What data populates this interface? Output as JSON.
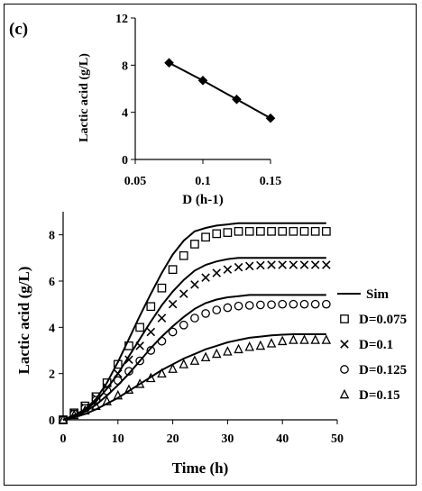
{
  "panel_label": "(c)",
  "chart_data": [
    {
      "type": "line",
      "xlabel": "D (h-1)",
      "ylabel": "Lactic acid (g/L)",
      "xlim": [
        0.05,
        0.15
      ],
      "ylim": [
        0,
        12
      ],
      "x_ticks": [
        "0.05",
        "0.1",
        "0.15"
      ],
      "y_ticks": [
        "0",
        "4",
        "8",
        "12"
      ],
      "grid": false,
      "series": [
        {
          "marker": "diamond",
          "x": [
            0.075,
            0.1,
            0.125,
            0.15
          ],
          "y": [
            8.2,
            6.7,
            5.1,
            3.5
          ]
        }
      ]
    },
    {
      "type": "scatter",
      "xlabel": "Time (h)",
      "ylabel": "Lactic acid (g/L)",
      "xlim": [
        0,
        50
      ],
      "ylim": [
        0,
        9
      ],
      "x_ticks": [
        "0",
        "10",
        "20",
        "30",
        "40",
        "50"
      ],
      "y_ticks": [
        "0",
        "2",
        "4",
        "6",
        "8"
      ],
      "grid": false,
      "legend": "right",
      "legend_entries": [
        "Sim",
        "D=0.075",
        "D=0.1",
        "D=0.125",
        "D=0.15"
      ],
      "series": [
        {
          "name": "D=0.075",
          "marker": "square",
          "x": [
            0,
            2,
            4,
            6,
            8,
            10,
            12,
            14,
            16,
            18,
            20,
            22,
            24,
            26,
            28,
            30,
            32,
            34,
            36,
            38,
            40,
            42,
            44,
            46,
            48
          ],
          "y": [
            0,
            0.3,
            0.6,
            1,
            1.6,
            2.4,
            3.2,
            4,
            4.9,
            5.7,
            6.5,
            7.1,
            7.6,
            7.9,
            8.05,
            8.1,
            8.15,
            8.15,
            8.15,
            8.15,
            8.15,
            8.15,
            8.15,
            8.15,
            8.15
          ]
        },
        {
          "name": "D=0.1",
          "marker": "cross",
          "x": [
            0,
            2,
            4,
            6,
            8,
            10,
            12,
            14,
            16,
            18,
            20,
            22,
            24,
            26,
            28,
            30,
            32,
            34,
            36,
            38,
            40,
            42,
            44,
            46,
            48
          ],
          "y": [
            0,
            0.3,
            0.55,
            0.95,
            1.4,
            2,
            2.6,
            3.2,
            3.8,
            4.4,
            5,
            5.45,
            5.85,
            6.15,
            6.35,
            6.5,
            6.6,
            6.65,
            6.68,
            6.7,
            6.7,
            6.7,
            6.7,
            6.7,
            6.7
          ]
        },
        {
          "name": "D=0.125",
          "marker": "circle",
          "x": [
            0,
            2,
            4,
            6,
            8,
            10,
            12,
            14,
            16,
            18,
            20,
            22,
            24,
            26,
            28,
            30,
            32,
            34,
            36,
            38,
            40,
            42,
            44,
            46,
            48
          ],
          "y": [
            0,
            0.25,
            0.5,
            0.85,
            1.25,
            1.7,
            2.1,
            2.55,
            3,
            3.4,
            3.8,
            4.1,
            4.4,
            4.6,
            4.75,
            4.85,
            4.92,
            4.95,
            4.97,
            4.98,
            5,
            5,
            5,
            5,
            5
          ]
        },
        {
          "name": "D=0.15",
          "marker": "triangle",
          "x": [
            0,
            2,
            4,
            6,
            8,
            10,
            12,
            14,
            16,
            18,
            20,
            22,
            24,
            26,
            28,
            30,
            32,
            34,
            36,
            38,
            40,
            42,
            44,
            46,
            48
          ],
          "y": [
            0,
            0.2,
            0.4,
            0.6,
            0.8,
            1.05,
            1.3,
            1.55,
            1.8,
            2,
            2.2,
            2.4,
            2.55,
            2.7,
            2.85,
            2.95,
            3.05,
            3.15,
            3.2,
            3.3,
            3.4,
            3.45,
            3.45,
            3.45,
            3.45
          ]
        },
        {
          "name": "Sim",
          "marker": "none",
          "x": [
            0,
            2,
            4,
            6,
            8,
            10,
            12,
            14,
            16,
            18,
            20,
            22,
            24,
            26,
            28,
            30,
            32,
            34,
            36,
            38,
            40,
            42,
            44,
            46,
            48
          ],
          "y": [
            0,
            0.2,
            0.45,
            0.9,
            1.6,
            2.5,
            3.5,
            4.5,
            5.45,
            6.35,
            7.15,
            7.75,
            8.15,
            8.3,
            8.4,
            8.45,
            8.5,
            8.5,
            8.5,
            8.5,
            8.5,
            8.5,
            8.5,
            8.5,
            8.5
          ]
        },
        {
          "name": "Sim",
          "marker": "none",
          "x": [
            0,
            2,
            4,
            6,
            8,
            10,
            12,
            14,
            16,
            18,
            20,
            22,
            24,
            26,
            28,
            30,
            32,
            34,
            36,
            38,
            40,
            42,
            44,
            46,
            48
          ],
          "y": [
            0,
            0.2,
            0.4,
            0.8,
            1.35,
            2,
            2.75,
            3.5,
            4.25,
            4.95,
            5.55,
            6.05,
            6.45,
            6.7,
            6.85,
            6.95,
            7,
            7,
            7,
            7,
            7,
            7,
            7,
            7,
            7
          ]
        },
        {
          "name": "Sim",
          "marker": "none",
          "x": [
            0,
            2,
            4,
            6,
            8,
            10,
            12,
            14,
            16,
            18,
            20,
            22,
            24,
            26,
            28,
            30,
            32,
            34,
            36,
            38,
            40,
            42,
            44,
            46,
            48
          ],
          "y": [
            0,
            0.15,
            0.35,
            0.65,
            1.05,
            1.5,
            2,
            2.55,
            3.1,
            3.6,
            4.05,
            4.45,
            4.8,
            5.05,
            5.2,
            5.3,
            5.35,
            5.4,
            5.4,
            5.4,
            5.4,
            5.4,
            5.4,
            5.4,
            5.4
          ]
        },
        {
          "name": "Sim",
          "marker": "none",
          "x": [
            0,
            2,
            4,
            6,
            8,
            10,
            12,
            14,
            16,
            18,
            20,
            22,
            24,
            26,
            28,
            30,
            32,
            34,
            36,
            38,
            40,
            42,
            44,
            46,
            48
          ],
          "y": [
            0,
            0.1,
            0.25,
            0.45,
            0.7,
            0.95,
            1.25,
            1.55,
            1.85,
            2.15,
            2.4,
            2.65,
            2.85,
            3.05,
            3.2,
            3.35,
            3.45,
            3.55,
            3.6,
            3.65,
            3.68,
            3.7,
            3.7,
            3.7,
            3.7
          ]
        }
      ]
    }
  ]
}
